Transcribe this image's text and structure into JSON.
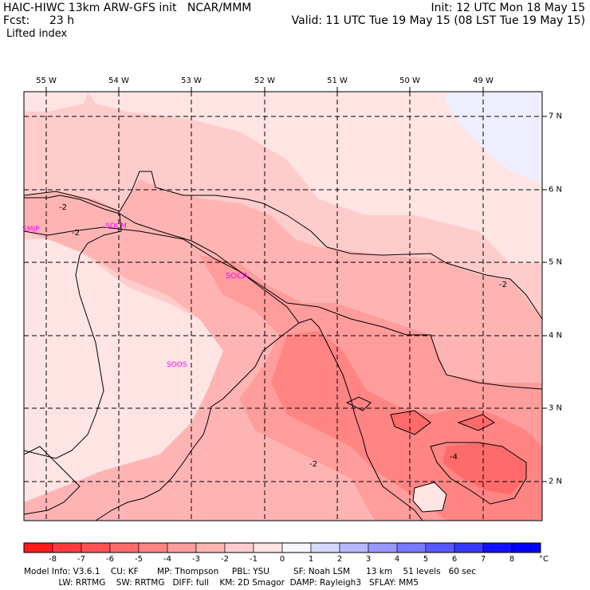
{
  "header": {
    "model_title": "HAIC-HIWC 13km ARW-GFS init   NCAR/MMM",
    "forecast_label": "Fcst:",
    "forecast_hours": "23 h",
    "field_name": "Lifted index",
    "init_time": "Init: 12 UTC Mon 18 May 15",
    "valid_time": "Valid: 11 UTC Tue 19 May 15 (08 LST Tue 19 May 15)"
  },
  "map": {
    "longitude_labels": [
      "55 W",
      "54 W",
      "53 W",
      "52 W",
      "51 W",
      "50 W",
      "49 W"
    ],
    "latitude_labels": [
      "7 N",
      "6 N",
      "5 N",
      "4 N",
      "3 N",
      "2 N"
    ],
    "stations": [
      "SMJP",
      "SOCM",
      "SOCA",
      "SOOS"
    ],
    "contour_labels": [
      "-2",
      "-2",
      "-2",
      "-2",
      "-4"
    ],
    "colors": {
      "station_label": "#ff00ff",
      "border": "#000000",
      "grid": "#000000"
    }
  },
  "colorbar": {
    "ticks": [
      "-8",
      "-7",
      "-6",
      "-5",
      "-4",
      "-3",
      "-2",
      "-1",
      "0",
      "1",
      "2",
      "3",
      "4",
      "5",
      "6",
      "7",
      "8"
    ],
    "unit": "°C",
    "colors": [
      "#ff1a1a",
      "#ff3a3a",
      "#ff5252",
      "#ff6a6a",
      "#ff8484",
      "#ff9c9c",
      "#ffb4b4",
      "#ffcccc",
      "#ffe4e4",
      "#f6f6ff",
      "#d8d8ff",
      "#b8b8ff",
      "#9898ff",
      "#7878ff",
      "#5858ff",
      "#3838ff",
      "#1010ff"
    ]
  },
  "footer": {
    "line1": "Model Info: V3.6.1    CU: KF       MP: Thompson     PBL: YSU         SF: Noah LSM      13 km    51 levels   60 sec",
    "line2": "             LW: RRTMG    SW: RRTMG   DIFF: full    KM: 2D Smagor  DAMP: Rayleigh3   SFLAY: MM5"
  }
}
